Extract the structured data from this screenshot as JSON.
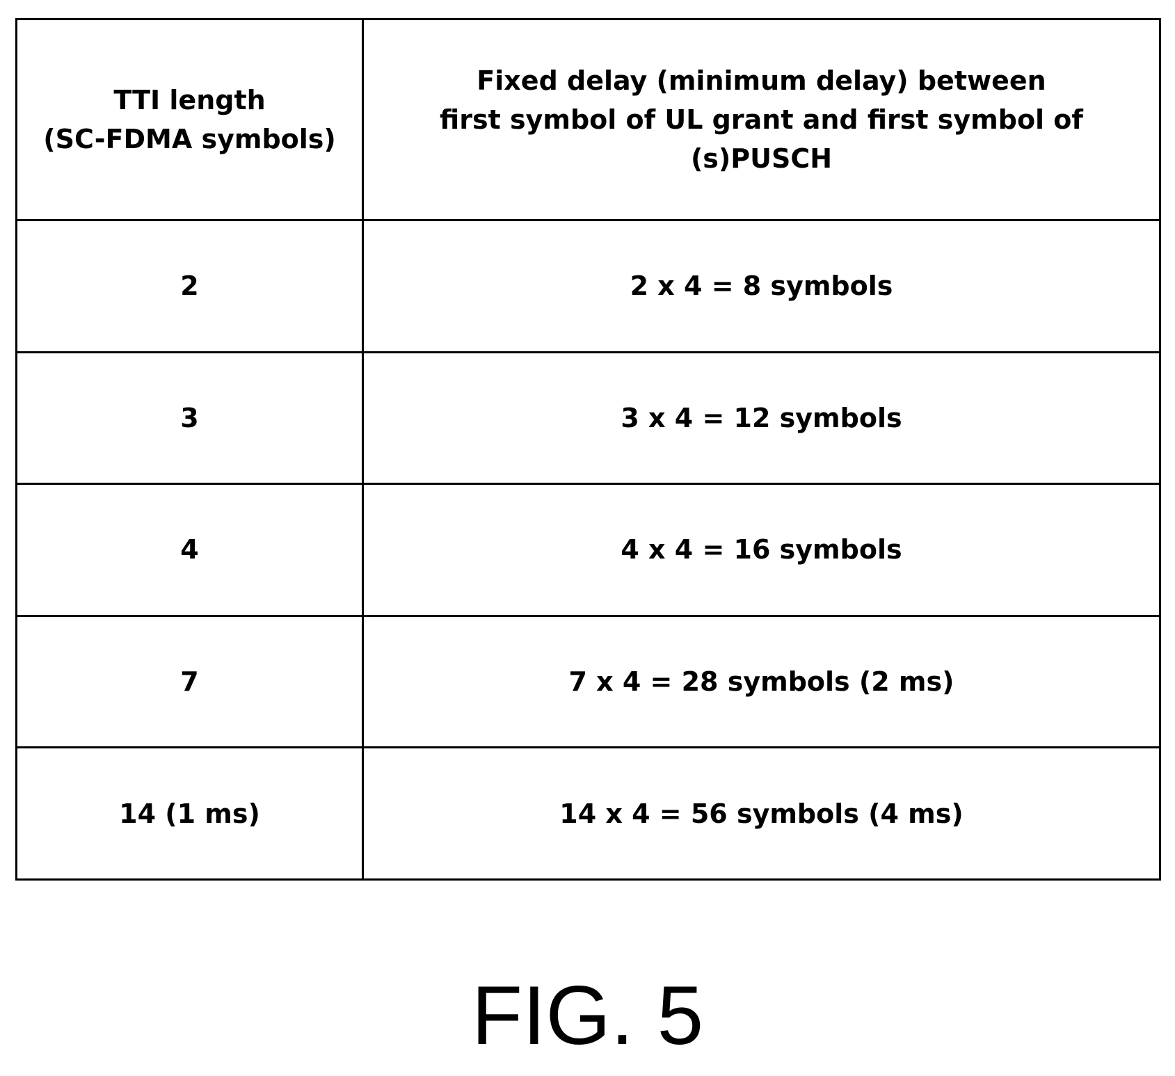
{
  "table": {
    "header": {
      "col1_lines": [
        "TTI length",
        "(SC-FDMA symbols)"
      ],
      "col2_lines": [
        "Fixed delay (minimum delay) between",
        "first symbol of UL grant and first symbol of (s)PUSCH"
      ]
    },
    "rows": [
      {
        "tti": "2",
        "delay": "2 x 4 = 8 symbols"
      },
      {
        "tti": "3",
        "delay": "3 x 4 = 12 symbols"
      },
      {
        "tti": "4",
        "delay": "4 x 4 = 16 symbols"
      },
      {
        "tti": "7",
        "delay": "7 x 4 = 28 symbols (2 ms)"
      },
      {
        "tti": "14 (1 ms)",
        "delay": "14 x 4 = 56 symbols (4 ms)"
      }
    ]
  },
  "figure_label": "FIG. 5"
}
